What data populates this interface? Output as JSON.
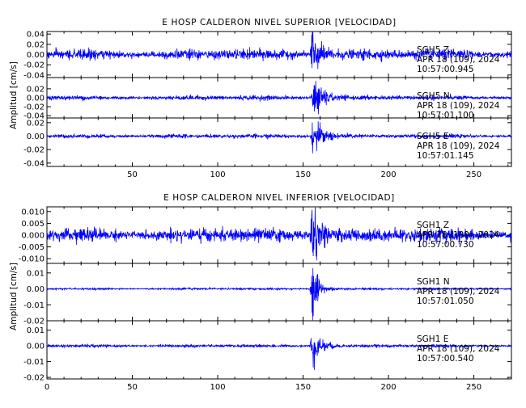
{
  "chart_data": [
    {
      "type": "line",
      "title": "E HOSP CALDERON NIVEL SUPERIOR [VELOCIDAD]",
      "ylabel": "Amplitud [cm/s]",
      "xlabel": "",
      "xlim": [
        0,
        272
      ],
      "xticks": [
        50,
        100,
        150,
        200,
        250
      ],
      "line_color": "#0000ff",
      "grid": false,
      "panels": [
        {
          "channel": "SGH5 Z",
          "ylim": [
            -0.045,
            0.045
          ],
          "yticks": [
            -0.04,
            -0.02,
            0.0,
            0.02,
            0.04
          ],
          "annotation": [
            "SGH5    Z",
            "APR 18 (109), 2024",
            "10:57:00.945"
          ],
          "trace": {
            "noise": 0.0075,
            "event_time": 155,
            "peak": 0.043,
            "decay": 4.5,
            "duration": 14
          }
        },
        {
          "channel": "SGH5 N",
          "ylim": [
            -0.045,
            0.045
          ],
          "yticks": [
            -0.04,
            -0.02,
            0.0,
            0.02
          ],
          "annotation": [
            "SGH5    N",
            "APR 18 (109), 2024",
            "10:57:01.100"
          ],
          "trace": {
            "noise": 0.0038,
            "event_time": 156,
            "peak": 0.04,
            "decay": 5.5,
            "duration": 14
          }
        },
        {
          "channel": "SGH5 E",
          "ylim": [
            -0.045,
            0.027
          ],
          "yticks": [
            -0.04,
            -0.02,
            0.0,
            0.02
          ],
          "annotation": [
            "SGH5    E",
            "APR 18 (109), 2024",
            "10:57:01.145"
          ],
          "trace": {
            "noise": 0.0022,
            "event_time": 155.5,
            "peak": 0.022,
            "decay": 6,
            "duration": 14
          }
        }
      ]
    },
    {
      "type": "line",
      "title": "E HOSP CALDERON NIVEL INFERIOR [VELOCIDAD]",
      "ylabel": "Amplitud [cm/s]",
      "xlabel": "",
      "xlim": [
        0,
        272
      ],
      "xticks": [
        0,
        50,
        100,
        150,
        200,
        250
      ],
      "line_color": "#0000ff",
      "grid": false,
      "panels": [
        {
          "channel": "SGH1 Z",
          "ylim": [
            -0.012,
            0.012
          ],
          "yticks": [
            -0.01,
            -0.005,
            0.0,
            0.005,
            0.01
          ],
          "annotation": [
            "SGH1    Z",
            "APR 18 (109), 2024",
            "10:57:00.730"
          ],
          "trace": {
            "noise": 0.0022,
            "event_time": 155,
            "peak": 0.0115,
            "decay": 4.5,
            "duration": 14
          }
        },
        {
          "channel": "SGH1 N",
          "ylim": [
            -0.02,
            0.016
          ],
          "yticks": [
            -0.02,
            -0.01,
            0.0,
            0.01
          ],
          "annotation": [
            "SGH1    N",
            "APR 18 (109), 2024",
            "10:57:01.050"
          ],
          "trace": {
            "noise": 0.00045,
            "event_time": 155.5,
            "peak": 0.019,
            "decay": 3.5,
            "duration": 16
          }
        },
        {
          "channel": "SGH1 E",
          "ylim": [
            -0.021,
            0.016
          ],
          "yticks": [
            -0.02,
            -0.01,
            0.0,
            0.01
          ],
          "annotation": [
            "SGH1    E",
            "APR 18 (109), 2024",
            "10:57:00.540"
          ],
          "trace": {
            "noise": 0.0007,
            "event_time": 155,
            "peak": 0.011,
            "decay": 5,
            "duration": 16
          }
        }
      ]
    }
  ]
}
